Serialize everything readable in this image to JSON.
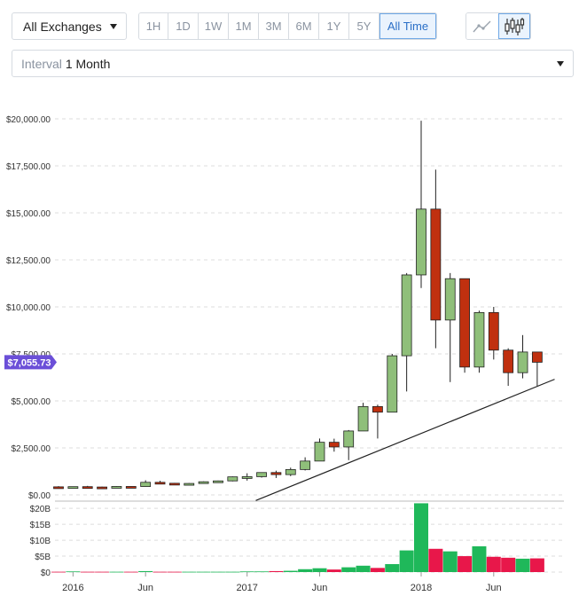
{
  "toolbar": {
    "exchange_label": "All Exchanges",
    "ranges": [
      {
        "label": "1H",
        "active": false
      },
      {
        "label": "1D",
        "active": false
      },
      {
        "label": "1W",
        "active": false
      },
      {
        "label": "1M",
        "active": false
      },
      {
        "label": "3M",
        "active": false
      },
      {
        "label": "6M",
        "active": false
      },
      {
        "label": "1Y",
        "active": false
      },
      {
        "label": "5Y",
        "active": false
      },
      {
        "label": "All Time",
        "active": true
      }
    ],
    "chart_types": [
      {
        "icon": "line-chart-icon",
        "active": false
      },
      {
        "icon": "candlestick-chart-icon",
        "active": true
      }
    ]
  },
  "interval": {
    "label": "Interval",
    "value": "1 Month"
  },
  "colors": {
    "up": "#8fbf7a",
    "down": "#c0300f",
    "vol_up": "#1fb85a",
    "vol_down": "#e8174a",
    "price_tag": "#6b4fd8",
    "grid": "#dcdcdc"
  },
  "chart_data": [
    {
      "type": "candlestick",
      "title": "",
      "price_label": "$7,055.73",
      "current_price": 7055.73,
      "ylim": [
        0,
        20000
      ],
      "y_ticks": [
        "$20,000.00",
        "$17,500.00",
        "$15,000.00",
        "$12,500.00",
        "$10,000.00",
        "$7,500.00",
        "$5,000.00",
        "$2,500.00",
        "$0.00"
      ],
      "y_tick_values": [
        20000,
        17500,
        15000,
        12500,
        10000,
        7500,
        5000,
        2500,
        0
      ],
      "x_labels": [
        "2016",
        "Jun",
        "2017",
        "Jun",
        "2018",
        "Jun"
      ],
      "x_label_index": [
        1,
        6,
        13,
        18,
        25,
        30
      ],
      "candles": [
        {
          "o": 430,
          "h": 465,
          "l": 355,
          "c": 370
        },
        {
          "o": 370,
          "h": 445,
          "l": 360,
          "c": 440
        },
        {
          "o": 440,
          "h": 480,
          "l": 370,
          "c": 420
        },
        {
          "o": 420,
          "h": 440,
          "l": 380,
          "c": 415
        },
        {
          "o": 415,
          "h": 470,
          "l": 400,
          "c": 450
        },
        {
          "o": 450,
          "h": 460,
          "l": 430,
          "c": 445
        },
        {
          "o": 445,
          "h": 780,
          "l": 440,
          "c": 670
        },
        {
          "o": 670,
          "h": 750,
          "l": 600,
          "c": 620
        },
        {
          "o": 620,
          "h": 640,
          "l": 540,
          "c": 575
        },
        {
          "o": 575,
          "h": 630,
          "l": 560,
          "c": 610
        },
        {
          "o": 610,
          "h": 720,
          "l": 600,
          "c": 700
        },
        {
          "o": 700,
          "h": 760,
          "l": 690,
          "c": 745
        },
        {
          "o": 745,
          "h": 980,
          "l": 720,
          "c": 960
        },
        {
          "o": 960,
          "h": 1150,
          "l": 760,
          "c": 970
        },
        {
          "o": 970,
          "h": 1200,
          "l": 920,
          "c": 1190
        },
        {
          "o": 1190,
          "h": 1290,
          "l": 900,
          "c": 1080
        },
        {
          "o": 1080,
          "h": 1450,
          "l": 1000,
          "c": 1350
        },
        {
          "o": 1350,
          "h": 2000,
          "l": 1300,
          "c": 1800
        },
        {
          "o": 1800,
          "h": 3000,
          "l": 1800,
          "c": 2800
        },
        {
          "o": 2800,
          "h": 2990,
          "l": 2300,
          "c": 2550
        },
        {
          "o": 2550,
          "h": 3450,
          "l": 1850,
          "c": 3400
        },
        {
          "o": 3400,
          "h": 4900,
          "l": 3400,
          "c": 4700
        },
        {
          "o": 4700,
          "h": 4800,
          "l": 3000,
          "c": 4400
        },
        {
          "o": 4400,
          "h": 7500,
          "l": 4400,
          "c": 7400
        },
        {
          "o": 7400,
          "h": 11800,
          "l": 5500,
          "c": 11700
        },
        {
          "o": 11700,
          "h": 19900,
          "l": 11000,
          "c": 15200
        },
        {
          "o": 15200,
          "h": 17300,
          "l": 7800,
          "c": 9300
        },
        {
          "o": 9300,
          "h": 11800,
          "l": 6000,
          "c": 11500
        },
        {
          "o": 11500,
          "h": 11500,
          "l": 6500,
          "c": 6800
        },
        {
          "o": 6800,
          "h": 9800,
          "l": 6500,
          "c": 9700
        },
        {
          "o": 9700,
          "h": 10000,
          "l": 7200,
          "c": 7700
        },
        {
          "o": 7700,
          "h": 7800,
          "l": 5800,
          "c": 6500
        },
        {
          "o": 6500,
          "h": 8500,
          "l": 6200,
          "c": 7600
        },
        {
          "o": 7600,
          "h": 7600,
          "l": 5800,
          "c": 7055
        }
      ],
      "trendline": {
        "from": {
          "index": 13.6,
          "value": -300
        },
        "to": {
          "index": 34.2,
          "value": 6150
        }
      }
    },
    {
      "type": "bar",
      "title": "",
      "ylim": [
        0,
        22
      ],
      "y_ticks": [
        "$20B",
        "$15B",
        "$10B",
        "$5B",
        "$0"
      ],
      "y_tick_values": [
        20,
        15,
        10,
        5,
        0
      ],
      "values": [
        0.1,
        0.2,
        0.1,
        0.1,
        0.1,
        0.1,
        0.3,
        0.1,
        0.1,
        0.1,
        0.1,
        0.1,
        0.1,
        0.2,
        0.2,
        0.3,
        0.4,
        0.9,
        1.2,
        0.8,
        1.5,
        2.0,
        1.3,
        2.5,
        6.8,
        21.6,
        7.3,
        6.5,
        5.0,
        8.1,
        4.8,
        4.5,
        4.2,
        4.3
      ]
    }
  ]
}
